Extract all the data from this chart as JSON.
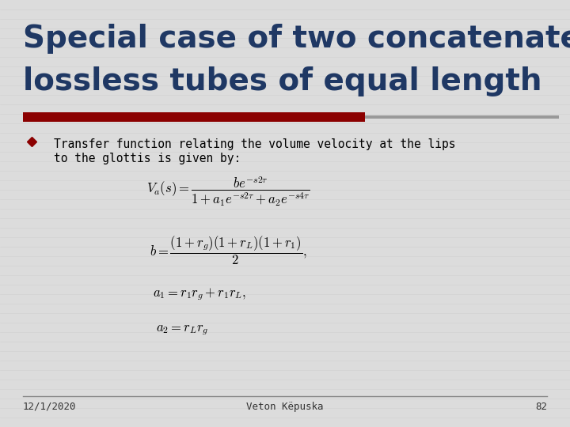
{
  "title_line1": "Special case of two concatenated",
  "title_line2": "lossless tubes of equal length",
  "title_color": "#1F3864",
  "title_fontsize": 28,
  "slide_bg": "#DCDCDC",
  "red_bar_color": "#8B0000",
  "bullet_text_line1": "Transfer function relating the volume velocity at the lips",
  "bullet_text_line2": "to the glottis is given by:",
  "bullet_color": "#8B0000",
  "text_color": "#000000",
  "footer_date": "12/1/2020",
  "footer_name": "Veton Këpuska",
  "footer_page": "82"
}
